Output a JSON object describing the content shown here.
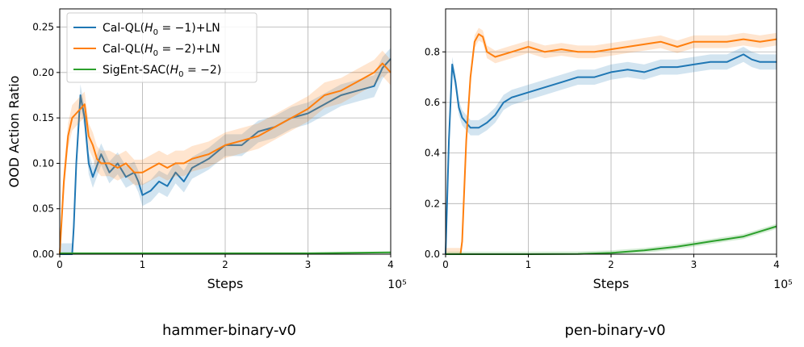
{
  "chart_data": [
    {
      "type": "line",
      "subtitle": "hammer-binary-v0",
      "xlabel": "Steps",
      "ylabel": "OOD Action Ratio",
      "x_scale_label": "10⁵",
      "xlim": [
        0,
        4
      ],
      "ylim": [
        0,
        0.27
      ],
      "xticks": [
        0,
        1,
        2,
        3,
        4
      ],
      "xtick_labels": [
        "0",
        "1",
        "2",
        "3",
        "4"
      ],
      "yticks": [
        0,
        0.05,
        0.1,
        0.15,
        0.2,
        0.25
      ],
      "ytick_labels": [
        "0.00",
        "0.05",
        "0.10",
        "0.15",
        "0.20",
        "0.25"
      ],
      "grid": true,
      "legend": {
        "placement": "top-left",
        "entries": [
          {
            "prefix": "Cal-QL(",
            "var": "H",
            "sub": "0",
            "rest": " = −1)+LN",
            "color": "#1f77b4"
          },
          {
            "prefix": "Cal-QL(",
            "var": "H",
            "sub": "0",
            "rest": " = −2)+LN",
            "color": "#ff7f0e"
          },
          {
            "prefix": "SigEnt-SAC(",
            "var": "H",
            "sub": "0",
            "rest": " = −2)",
            "color": "#2ca02c"
          }
        ]
      },
      "series": [
        {
          "name": "Cal-QL(H0=-1)+LN",
          "color": "#1f77b4",
          "band": 0.012,
          "x": [
            0,
            0.15,
            0.17,
            0.2,
            0.25,
            0.3,
            0.35,
            0.4,
            0.5,
            0.6,
            0.7,
            0.8,
            0.9,
            0.95,
            1.0,
            1.1,
            1.2,
            1.3,
            1.4,
            1.5,
            1.6,
            1.8,
            2.0,
            2.2,
            2.4,
            2.6,
            2.8,
            3.0,
            3.2,
            3.4,
            3.6,
            3.8,
            3.9,
            4.0
          ],
          "y": [
            0,
            0,
            0.03,
            0.1,
            0.175,
            0.15,
            0.1,
            0.085,
            0.11,
            0.09,
            0.1,
            0.085,
            0.09,
            0.08,
            0.065,
            0.07,
            0.08,
            0.075,
            0.09,
            0.08,
            0.095,
            0.105,
            0.12,
            0.12,
            0.135,
            0.14,
            0.15,
            0.155,
            0.165,
            0.175,
            0.18,
            0.185,
            0.205,
            0.215
          ]
        },
        {
          "name": "Cal-QL(H0=-2)+LN",
          "color": "#ff7f0e",
          "band": 0.014,
          "x": [
            0,
            0.05,
            0.1,
            0.15,
            0.2,
            0.25,
            0.3,
            0.35,
            0.4,
            0.45,
            0.5,
            0.6,
            0.7,
            0.8,
            0.9,
            1.0,
            1.1,
            1.2,
            1.3,
            1.4,
            1.5,
            1.6,
            1.8,
            2.0,
            2.2,
            2.4,
            2.6,
            2.8,
            3.0,
            3.2,
            3.4,
            3.6,
            3.8,
            3.9,
            4.0
          ],
          "y": [
            0,
            0.08,
            0.13,
            0.15,
            0.155,
            0.16,
            0.165,
            0.13,
            0.12,
            0.105,
            0.1,
            0.1,
            0.095,
            0.1,
            0.09,
            0.09,
            0.095,
            0.1,
            0.095,
            0.1,
            0.1,
            0.105,
            0.11,
            0.12,
            0.125,
            0.13,
            0.14,
            0.15,
            0.16,
            0.175,
            0.18,
            0.19,
            0.2,
            0.21,
            0.2
          ]
        },
        {
          "name": "SigEnt-SAC(H0=-2)",
          "color": "#2ca02c",
          "band": 0.001,
          "x": [
            0,
            1,
            2,
            3,
            4
          ],
          "y": [
            0.001,
            0.001,
            0.001,
            0.001,
            0.002
          ]
        }
      ]
    },
    {
      "type": "line",
      "subtitle": "pen-binary-v0",
      "xlabel": "Steps",
      "ylabel": "",
      "x_scale_label": "10⁵",
      "xlim": [
        0,
        4
      ],
      "ylim": [
        0,
        0.97
      ],
      "xticks": [
        0,
        1,
        2,
        3,
        4
      ],
      "xtick_labels": [
        "0",
        "1",
        "2",
        "3",
        "4"
      ],
      "yticks": [
        0,
        0.2,
        0.4,
        0.6,
        0.8
      ],
      "ytick_labels": [
        "0.0",
        "0.2",
        "0.4",
        "0.6",
        "0.8"
      ],
      "grid": true,
      "series": [
        {
          "name": "Cal-QL(H0=-1)+LN",
          "color": "#1f77b4",
          "band": 0.03,
          "x": [
            0,
            0.04,
            0.08,
            0.12,
            0.16,
            0.2,
            0.3,
            0.4,
            0.5,
            0.6,
            0.7,
            0.8,
            1.0,
            1.2,
            1.4,
            1.6,
            1.8,
            2.0,
            2.2,
            2.4,
            2.6,
            2.8,
            3.0,
            3.2,
            3.4,
            3.6,
            3.7,
            3.8,
            4.0
          ],
          "y": [
            0,
            0.45,
            0.75,
            0.68,
            0.58,
            0.54,
            0.5,
            0.5,
            0.52,
            0.55,
            0.6,
            0.62,
            0.64,
            0.66,
            0.68,
            0.7,
            0.7,
            0.72,
            0.73,
            0.72,
            0.74,
            0.74,
            0.75,
            0.76,
            0.76,
            0.79,
            0.77,
            0.76,
            0.76
          ]
        },
        {
          "name": "Cal-QL(H0=-2)+LN",
          "color": "#ff7f0e",
          "band": 0.025,
          "x": [
            0,
            0.18,
            0.2,
            0.25,
            0.3,
            0.35,
            0.4,
            0.45,
            0.5,
            0.6,
            0.8,
            1.0,
            1.2,
            1.4,
            1.6,
            1.8,
            2.0,
            2.2,
            2.4,
            2.6,
            2.8,
            3.0,
            3.2,
            3.4,
            3.6,
            3.8,
            4.0
          ],
          "y": [
            0,
            0,
            0.05,
            0.45,
            0.7,
            0.84,
            0.87,
            0.86,
            0.8,
            0.78,
            0.8,
            0.82,
            0.8,
            0.81,
            0.8,
            0.8,
            0.81,
            0.82,
            0.83,
            0.84,
            0.82,
            0.84,
            0.84,
            0.84,
            0.85,
            0.84,
            0.85
          ]
        },
        {
          "name": "SigEnt-SAC(H0=-2)",
          "color": "#2ca02c",
          "band": 0.01,
          "x": [
            0,
            1.0,
            1.6,
            2.0,
            2.4,
            2.8,
            3.0,
            3.2,
            3.4,
            3.6,
            3.8,
            4.0
          ],
          "y": [
            0,
            0,
            0.001,
            0.005,
            0.015,
            0.03,
            0.04,
            0.05,
            0.06,
            0.07,
            0.09,
            0.11
          ]
        }
      ]
    }
  ]
}
